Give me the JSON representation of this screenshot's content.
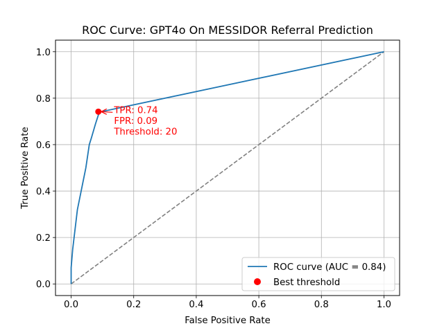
{
  "chart_data": {
    "type": "line",
    "title": "ROC Curve: GPT4o On MESSIDOR Referral Prediction",
    "xlabel": "False Positive Rate",
    "ylabel": "True Positive Rate",
    "xlim": [
      -0.05,
      1.05
    ],
    "ylim": [
      -0.05,
      1.05
    ],
    "xticks": [
      0.0,
      0.2,
      0.4,
      0.6,
      0.8,
      1.0
    ],
    "yticks": [
      0.0,
      0.2,
      0.4,
      0.6,
      0.8,
      1.0
    ],
    "xtick_labels": [
      "0.0",
      "0.2",
      "0.4",
      "0.6",
      "0.8",
      "1.0"
    ],
    "ytick_labels": [
      "0.0",
      "0.2",
      "0.4",
      "0.6",
      "0.8",
      "1.0"
    ],
    "grid": true,
    "legend_position": "lower-right",
    "series": [
      {
        "name": "ROC curve (AUC = 0.84)",
        "color": "#1f77b4",
        "x": [
          0.0,
          0.0,
          0.005,
          0.02,
          0.035,
          0.047,
          0.058,
          0.065,
          0.078,
          0.09,
          1.0
        ],
        "y": [
          0.0,
          0.07,
          0.15,
          0.32,
          0.42,
          0.5,
          0.6,
          0.63,
          0.69,
          0.74,
          1.0
        ]
      }
    ],
    "diagonal": {
      "x": [
        0.0,
        1.0
      ],
      "y": [
        0.0,
        1.0
      ],
      "color": "#808080",
      "style": "dashed"
    },
    "best_point": {
      "name": "Best threshold",
      "x": 0.087,
      "y": 0.742,
      "color": "#ff0000"
    },
    "annotation": {
      "lines": [
        "TPR: 0.74",
        "FPR: 0.09",
        "Threshold: 20"
      ],
      "color": "#ff0000",
      "text_x": 0.137,
      "text_y": 0.742
    }
  }
}
